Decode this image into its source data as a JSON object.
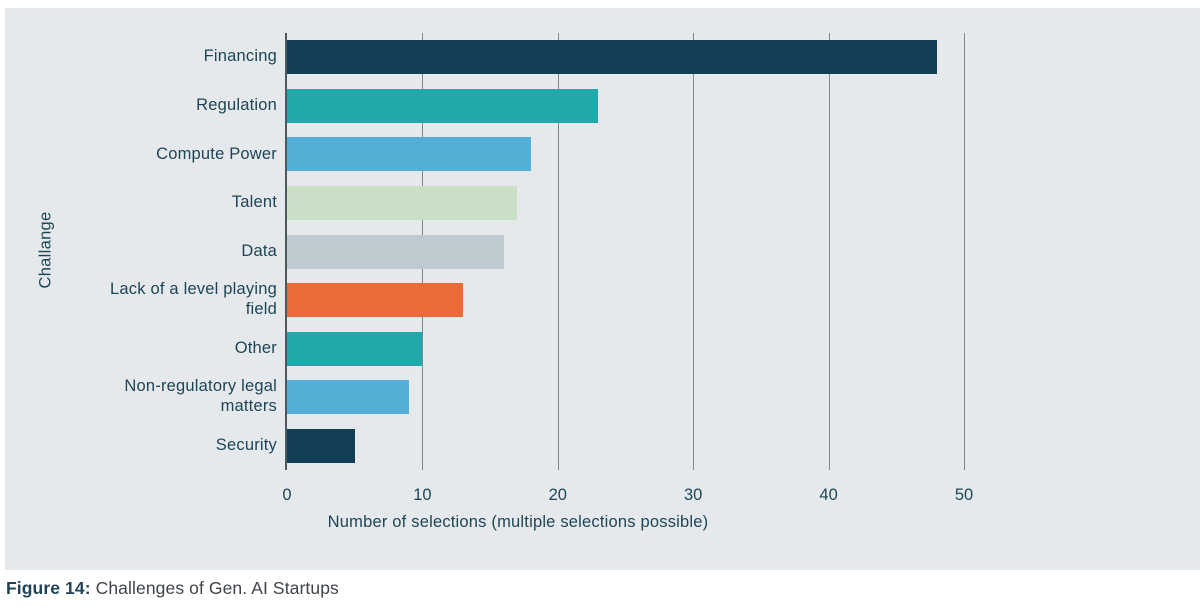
{
  "panel": {
    "bg": "#e5e9ec"
  },
  "chart_data": {
    "type": "bar",
    "orientation": "horizontal",
    "categories": [
      "Financing",
      "Regulation",
      "Compute Power",
      "Talent",
      "Data",
      "Lack of a level playing\nfield",
      "Other",
      "Non-regulatory legal\nmatters",
      "Security"
    ],
    "values": [
      48,
      23,
      18,
      17,
      16,
      13,
      10,
      9,
      5
    ],
    "bar_colors": [
      "#123f56",
      "#21a8ab",
      "#55aed5",
      "#c9e0c6",
      "#bfc9d0",
      "#ea6a38",
      "#21a8ab",
      "#55aed5",
      "#123f56"
    ],
    "xlabel": "Number of selections (multiple selections possible)",
    "ylabel": "Challange",
    "xlim": [
      0,
      50
    ],
    "xticks": [
      0,
      10,
      20,
      30,
      40,
      50
    ],
    "grid": true,
    "legend_position": "none",
    "gridline_color": "#80878c",
    "axis_line_color": "#4d585f",
    "text_color": "#1d4557"
  },
  "caption": {
    "tag": "Figure 14:",
    "text": "Challenges of Gen. AI Startups"
  }
}
